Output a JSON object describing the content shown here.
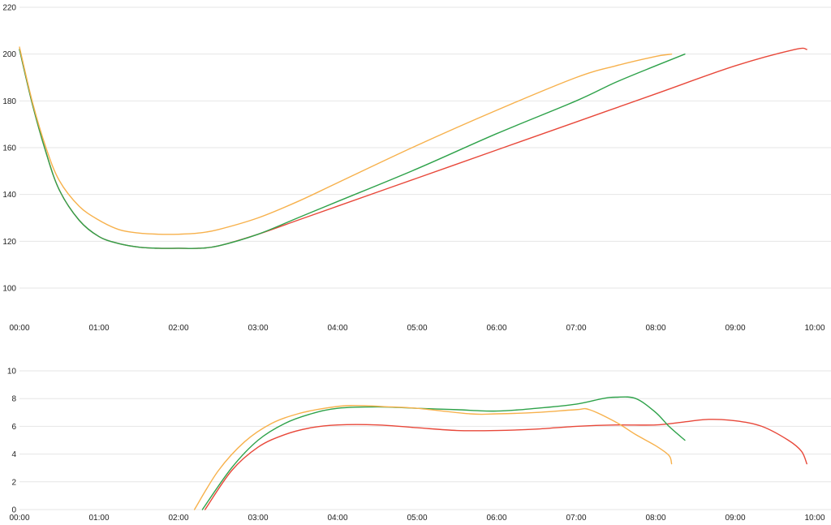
{
  "chart_data": [
    {
      "type": "line",
      "ylim": [
        100,
        220
      ],
      "y_ticks": [
        "100",
        "120",
        "140",
        "160",
        "180",
        "200",
        "220"
      ],
      "xlim_minutes": [
        0,
        600
      ],
      "x_ticks": [
        "00:00",
        "01:00",
        "02:00",
        "03:00",
        "04:00",
        "05:00",
        "06:00",
        "07:00",
        "08:00",
        "09:00",
        "10:00"
      ],
      "grid": true,
      "colors": [
        "#e8483a",
        "#2ea24a",
        "#f7b14c"
      ],
      "series": [
        {
          "color": "#e8483a",
          "x": [
            "00:00",
            "00:10",
            "00:20",
            "00:30",
            "00:45",
            "01:00",
            "01:15",
            "01:30",
            "01:45",
            "02:00",
            "02:15",
            "02:30",
            "03:00",
            "03:30",
            "04:00",
            "05:00",
            "06:00",
            "07:00",
            "08:00",
            "09:00",
            "09:45",
            "09:54"
          ],
          "y": [
            202,
            178,
            158,
            142,
            129,
            122,
            119,
            117.5,
            117,
            117,
            117,
            118,
            123,
            129,
            135,
            147,
            159,
            171,
            183,
            195,
            202,
            202
          ]
        },
        {
          "color": "#2ea24a",
          "x": [
            "00:00",
            "00:10",
            "00:20",
            "00:30",
            "00:45",
            "01:00",
            "01:15",
            "01:30",
            "01:45",
            "02:00",
            "02:15",
            "02:30",
            "03:00",
            "03:30",
            "04:00",
            "05:00",
            "06:00",
            "07:00",
            "07:30",
            "08:00",
            "08:22"
          ],
          "y": [
            202,
            178,
            158,
            142,
            129,
            122,
            119,
            117.5,
            117,
            117,
            117,
            118,
            123,
            130,
            137,
            151,
            166,
            180,
            188,
            195,
            200
          ]
        },
        {
          "color": "#f7b14c",
          "x": [
            "00:00",
            "00:10",
            "00:20",
            "00:30",
            "00:45",
            "01:00",
            "01:15",
            "01:30",
            "01:45",
            "02:00",
            "02:15",
            "02:30",
            "03:00",
            "03:30",
            "04:00",
            "05:00",
            "06:00",
            "07:00",
            "07:30",
            "08:00",
            "08:12"
          ],
          "y": [
            203,
            179,
            160,
            146,
            135,
            129,
            125,
            123.5,
            123,
            123,
            123.5,
            125,
            130,
            137,
            145,
            161,
            176,
            190,
            195,
            199,
            200
          ]
        }
      ]
    },
    {
      "type": "line",
      "ylim": [
        0,
        10
      ],
      "y_ticks": [
        "0",
        "2",
        "4",
        "6",
        "8",
        "10"
      ],
      "xlim_minutes": [
        0,
        600
      ],
      "x_ticks": [
        "00:00",
        "01:00",
        "02:00",
        "03:00",
        "04:00",
        "05:00",
        "06:00",
        "07:00",
        "08:00",
        "09:00",
        "10:00"
      ],
      "grid": true,
      "colors": [
        "#e8483a",
        "#2ea24a",
        "#f7b14c"
      ],
      "series": [
        {
          "color": "#e8483a",
          "x": [
            "02:20",
            "02:40",
            "03:00",
            "03:20",
            "03:40",
            "04:00",
            "04:30",
            "05:00",
            "05:30",
            "06:00",
            "06:30",
            "07:00",
            "07:30",
            "08:00",
            "08:20",
            "08:40",
            "09:00",
            "09:20",
            "09:40",
            "09:50",
            "09:54"
          ],
          "y": [
            0,
            2.8,
            4.5,
            5.4,
            5.9,
            6.1,
            6.1,
            5.9,
            5.7,
            5.7,
            5.8,
            6.0,
            6.1,
            6.1,
            6.3,
            6.5,
            6.4,
            6.0,
            5.0,
            4.2,
            3.3
          ]
        },
        {
          "color": "#2ea24a",
          "x": [
            "02:18",
            "02:40",
            "03:00",
            "03:20",
            "03:40",
            "04:00",
            "04:30",
            "05:00",
            "05:30",
            "06:00",
            "06:30",
            "07:00",
            "07:20",
            "07:30",
            "07:45",
            "08:00",
            "08:10",
            "08:22"
          ],
          "y": [
            0,
            3.0,
            5.0,
            6.2,
            6.9,
            7.3,
            7.4,
            7.3,
            7.2,
            7.1,
            7.3,
            7.6,
            8.0,
            8.1,
            8.0,
            7.0,
            6.0,
            5.0
          ]
        },
        {
          "color": "#f7b14c",
          "x": [
            "02:12",
            "02:30",
            "02:50",
            "03:10",
            "03:30",
            "03:50",
            "04:10",
            "04:40",
            "05:00",
            "05:40",
            "06:00",
            "06:30",
            "07:00",
            "07:10",
            "07:30",
            "07:45",
            "08:00",
            "08:10",
            "08:12"
          ],
          "y": [
            0,
            2.8,
            4.9,
            6.2,
            6.9,
            7.3,
            7.5,
            7.4,
            7.3,
            6.9,
            6.9,
            7.0,
            7.2,
            7.2,
            6.3,
            5.4,
            4.6,
            3.9,
            3.3
          ]
        }
      ]
    }
  ]
}
